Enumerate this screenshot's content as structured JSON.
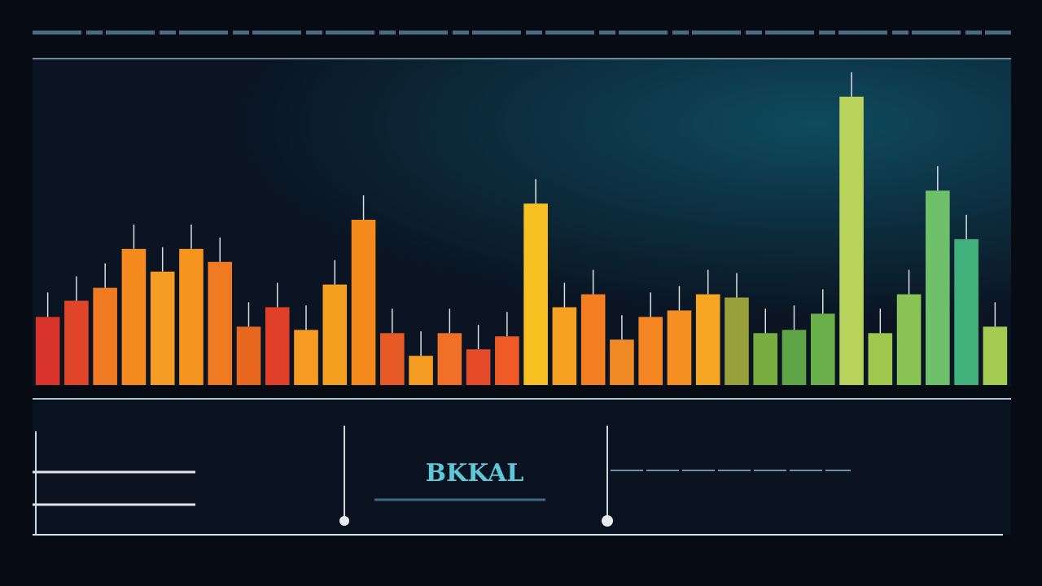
{
  "chart_data": {
    "type": "bar",
    "title": "BKKAL",
    "categories": [
      null,
      null,
      null,
      null,
      null,
      null,
      null,
      null,
      null,
      null,
      null,
      null,
      null,
      null,
      null,
      null,
      null,
      null,
      null,
      null,
      null,
      null,
      null,
      null,
      null,
      null,
      null,
      null,
      null,
      null,
      null,
      null,
      null,
      null
    ],
    "values": [
      21,
      26,
      30,
      42,
      35,
      42,
      38,
      18,
      24,
      17,
      31,
      51,
      16,
      9,
      16,
      11,
      15,
      56,
      24,
      28,
      14,
      21,
      23,
      28,
      27,
      16,
      17,
      22,
      89,
      16,
      28,
      60,
      45,
      18
    ],
    "colors": [
      "#d9342b",
      "#e0452a",
      "#ef7a22",
      "#f58a1e",
      "#f39b22",
      "#f5941f",
      "#f07a22",
      "#e8671f",
      "#e0402a",
      "#f79a21",
      "#f5a020",
      "#f58a1e",
      "#e85a25",
      "#f59b22",
      "#f0702a",
      "#e54a28",
      "#ef5a26",
      "#f7c221",
      "#f7a122",
      "#f47f23",
      "#f08a24",
      "#f48624",
      "#f48f22",
      "#f5a623",
      "#97a03a",
      "#7aad3f",
      "#5fa548",
      "#69b04a",
      "#b8d35a",
      "#a0c84f",
      "#8ac456",
      "#6ec16a",
      "#42b07a",
      "#a5cc50"
    ],
    "ylim": [
      0,
      100
    ]
  }
}
